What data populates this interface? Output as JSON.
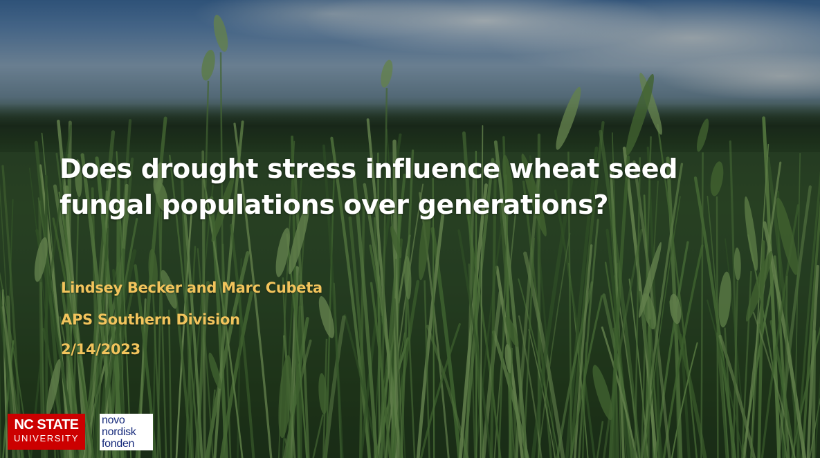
{
  "slide": {
    "title": "Does drought stress influence wheat seed fungal populations over generations?",
    "authors": "Lindsey Becker and Marc Cubeta",
    "event": "APS Southern Division",
    "date": "2/14/2023"
  },
  "logos": {
    "ncstate": {
      "line1": "NC STATE",
      "line2": "UNIVERSITY"
    },
    "novo": {
      "line1": "novo",
      "line2": "nordisk",
      "line3": "fonden"
    }
  },
  "colors": {
    "title": "#ffffff",
    "subtitle": "#f2c45c",
    "ncstate_red": "#cc0000",
    "novo_blue": "#14287a"
  },
  "background": {
    "subject": "wheat-field-photo"
  }
}
